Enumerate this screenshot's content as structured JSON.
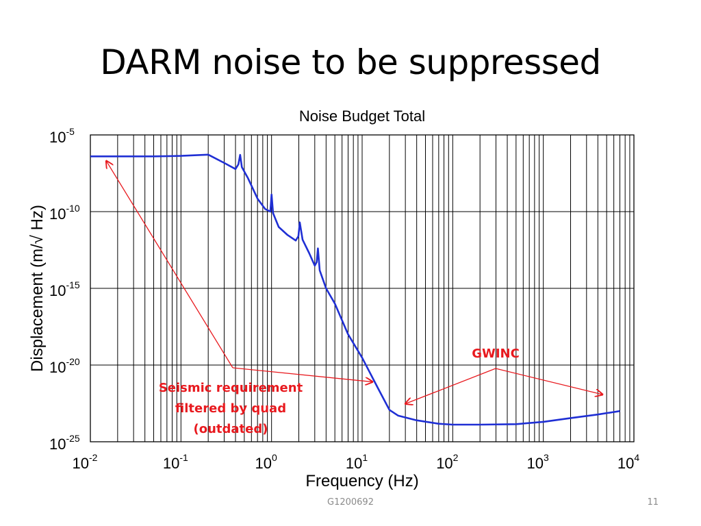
{
  "slide": {
    "title": "DARM noise to be suppressed",
    "footer_id": "G1200692",
    "page_number": "11"
  },
  "colors": {
    "curve": "#1f2fd4",
    "annotation": "#e8191e",
    "grid": "#000000"
  },
  "chart_data": {
    "type": "line",
    "title": "Noise Budget Total",
    "xlabel": "Frequency (Hz)",
    "ylabel": "Displacement (m/√ Hz)",
    "xscale": "log",
    "yscale": "log",
    "xlim": [
      0.01,
      10000
    ],
    "ylim": [
      1e-25,
      1e-05
    ],
    "grid": true,
    "x_ticks": [
      {
        "base": "10",
        "exp": "-2",
        "value": 0.01
      },
      {
        "base": "10",
        "exp": "-1",
        "value": 0.1
      },
      {
        "base": "10",
        "exp": "0",
        "value": 1
      },
      {
        "base": "10",
        "exp": "1",
        "value": 10
      },
      {
        "base": "10",
        "exp": "2",
        "value": 100
      },
      {
        "base": "10",
        "exp": "3",
        "value": 1000
      },
      {
        "base": "10",
        "exp": "4",
        "value": 10000
      }
    ],
    "y_ticks": [
      {
        "base": "10",
        "exp": "-5",
        "value": 1e-05
      },
      {
        "base": "10",
        "exp": "-10",
        "value": 1e-10
      },
      {
        "base": "10",
        "exp": "-15",
        "value": 1e-15
      },
      {
        "base": "10",
        "exp": "-20",
        "value": 1e-20
      },
      {
        "base": "10",
        "exp": "-25",
        "value": 1e-25
      }
    ],
    "series": [
      {
        "x": [
          0.01,
          0.02,
          0.05,
          0.1,
          0.2,
          0.3,
          0.4,
          0.43,
          0.45,
          0.47,
          0.55,
          0.7,
          0.85,
          0.97,
          1.0,
          1.04,
          1.2,
          1.5,
          1.85,
          1.98,
          2.05,
          2.2,
          2.6,
          3.0,
          3.15,
          3.25,
          3.4,
          4.0,
          5.0,
          7.0,
          10.0,
          15.0,
          20.0,
          25.0,
          40.0,
          70.0,
          100.0,
          200.0,
          500.0,
          1000.0,
          2000.0,
          4000.0,
          7000.0
        ],
        "y": [
          4e-07,
          4e-07,
          4e-07,
          4.3e-07,
          5.2e-07,
          1.5e-07,
          6e-08,
          1.2e-07,
          5e-07,
          8e-08,
          1.5e-08,
          7e-10,
          1.5e-10,
          1e-10,
          1.3e-09,
          8e-11,
          1e-11,
          3e-12,
          1.3e-12,
          2.5e-12,
          2e-11,
          1.5e-12,
          2e-13,
          3e-14,
          5e-14,
          4e-13,
          1.5e-14,
          1e-15,
          1e-16,
          1e-18,
          3e-20,
          3e-22,
          1.2e-23,
          5e-24,
          2.5e-24,
          1.5e-24,
          1.3e-24,
          1.3e-24,
          1.4e-24,
          2e-24,
          3.5e-24,
          6e-24,
          1e-23
        ]
      }
    ],
    "annotations": [
      {
        "lines": [
          "Seismic requirement",
          "filtered by quad",
          "(outdated)"
        ],
        "arrow_targets": [
          {
            "x": 0.015,
            "y": 2e-07
          },
          {
            "x": 13,
            "y": 8e-22
          }
        ]
      },
      {
        "lines": [
          "GWINC"
        ],
        "arrow_targets": [
          {
            "x": 30,
            "y": 3e-23
          },
          {
            "x": 4500,
            "y": 1.2e-22
          }
        ]
      }
    ]
  }
}
